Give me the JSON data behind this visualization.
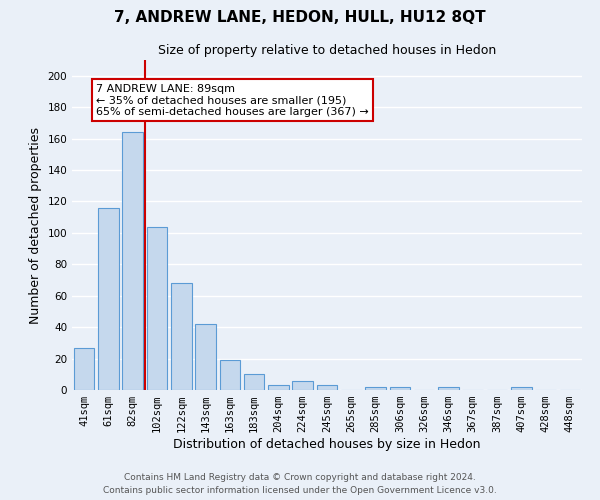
{
  "title": "7, ANDREW LANE, HEDON, HULL, HU12 8QT",
  "subtitle": "Size of property relative to detached houses in Hedon",
  "xlabel": "Distribution of detached houses by size in Hedon",
  "ylabel": "Number of detached properties",
  "footer_line1": "Contains HM Land Registry data © Crown copyright and database right 2024.",
  "footer_line2": "Contains public sector information licensed under the Open Government Licence v3.0.",
  "bin_labels": [
    "41sqm",
    "61sqm",
    "82sqm",
    "102sqm",
    "122sqm",
    "143sqm",
    "163sqm",
    "183sqm",
    "204sqm",
    "224sqm",
    "245sqm",
    "265sqm",
    "285sqm",
    "306sqm",
    "326sqm",
    "346sqm",
    "367sqm",
    "387sqm",
    "407sqm",
    "428sqm",
    "448sqm"
  ],
  "bar_heights": [
    27,
    116,
    164,
    104,
    68,
    42,
    19,
    10,
    3,
    6,
    3,
    0,
    2,
    2,
    0,
    2,
    0,
    0,
    2,
    0,
    0
  ],
  "bar_color": "#c5d8ed",
  "bar_edge_color": "#5b9bd5",
  "vline_color": "#cc0000",
  "annotation_box_text": "7 ANDREW LANE: 89sqm\n← 35% of detached houses are smaller (195)\n65% of semi-detached houses are larger (367) →",
  "ylim": [
    0,
    210
  ],
  "yticks": [
    0,
    20,
    40,
    60,
    80,
    100,
    120,
    140,
    160,
    180,
    200
  ],
  "background_color": "#eaf0f8",
  "grid_color": "#ffffff",
  "title_fontsize": 11,
  "subtitle_fontsize": 9,
  "axis_label_fontsize": 9,
  "tick_fontsize": 7.5,
  "footer_fontsize": 6.5,
  "annotation_fontsize": 8
}
